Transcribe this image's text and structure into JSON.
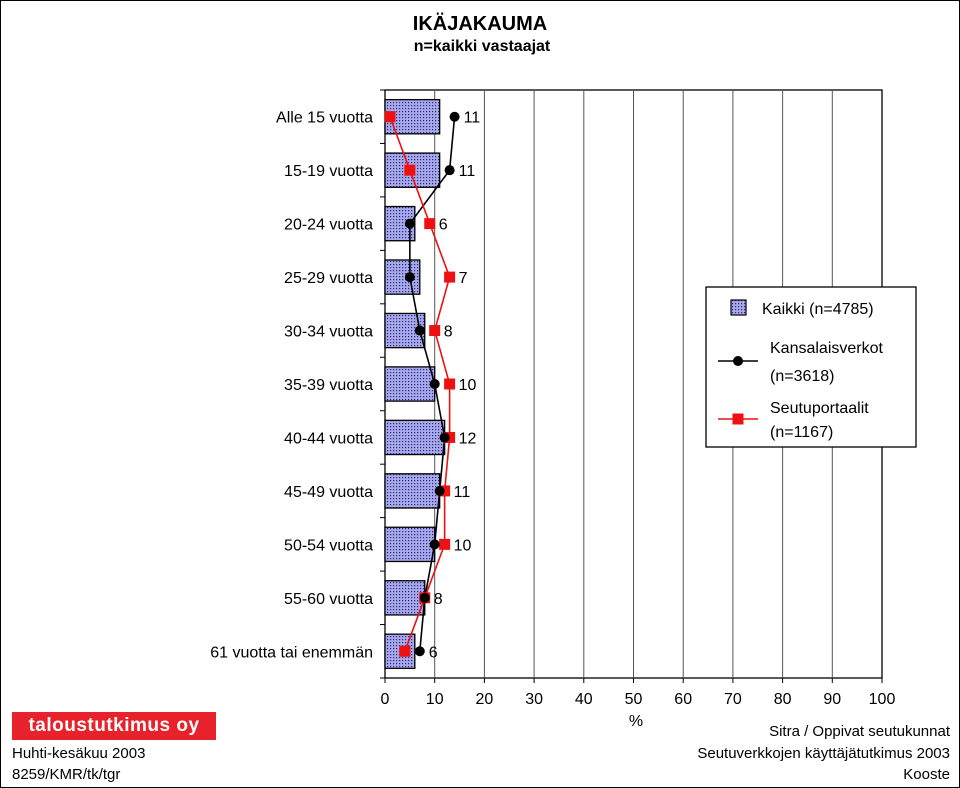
{
  "chart_data": {
    "type": "bar",
    "title": "IKÄJAKAUMA",
    "subtitle": "n=kaikki vastaajat",
    "categories": [
      "Alle 15 vuotta",
      "15-19 vuotta",
      "20-24 vuotta",
      "25-29 vuotta",
      "30-34 vuotta",
      "35-39 vuotta",
      "40-44 vuotta",
      "45-49 vuotta",
      "50-54 vuotta",
      "55-60 vuotta",
      "61 vuotta tai enemmän"
    ],
    "series": [
      {
        "name": "Kaikki (n=4785)",
        "kind": "bar",
        "values": [
          11,
          11,
          6,
          7,
          8,
          10,
          12,
          11,
          10,
          8,
          6
        ],
        "data_labels": [
          "11",
          "11",
          "6",
          "7",
          "8",
          "10",
          "12",
          "11",
          "10",
          "8",
          "6"
        ]
      },
      {
        "name": "Kansalaisverkot (n=3618)",
        "legend_lines": [
          "Kansalaisverkot",
          " (n=3618)"
        ],
        "kind": "line",
        "marker": "circle",
        "color": "#000000",
        "values": [
          14,
          13,
          5,
          5,
          7,
          10,
          12,
          11,
          10,
          8,
          7
        ]
      },
      {
        "name": "Seutuportaalit (n=1167)",
        "legend_lines": [
          "Seutuportaalit",
          "(n=1167)"
        ],
        "kind": "line",
        "marker": "square",
        "color": "#ee1111",
        "values": [
          1,
          5,
          9,
          13,
          10,
          13,
          13,
          12,
          12,
          8,
          4
        ]
      }
    ],
    "xlabel": "%",
    "xlim": [
      0,
      100
    ],
    "xticks": [
      0,
      10,
      20,
      30,
      40,
      50,
      60,
      70,
      80,
      90,
      100
    ],
    "grid": true,
    "orientation": "horizontal",
    "legend_position": "right"
  },
  "colors": {
    "bar_fill": "#9c9ce0",
    "bar_stroke": "#000000",
    "line1": "#000000",
    "line2": "#ee1111",
    "logo_bg": "#e8222a"
  },
  "footer": {
    "logo": "taloustutkimus oy",
    "left": [
      "Huhti-kesäkuu 2003",
      "8259/KMR/tk/tgr"
    ],
    "right": [
      "Sitra / Oppivat seutukunnat",
      "Seutuverkkojen käyttäjätutkimus 2003",
      "Kooste"
    ]
  }
}
